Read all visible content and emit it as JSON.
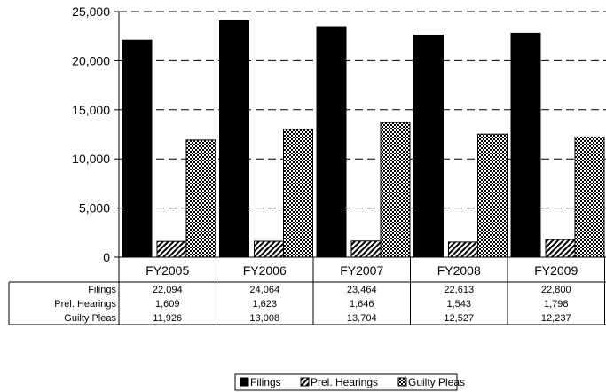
{
  "chart_data": {
    "type": "bar",
    "categories": [
      "FY2005",
      "FY2006",
      "FY2007",
      "FY2008",
      "FY2009"
    ],
    "series": [
      {
        "name": "Filings",
        "values": [
          22094,
          24064,
          23464,
          22613,
          22800
        ],
        "color": "#000000",
        "pattern": "solid"
      },
      {
        "name": "Prel. Hearings",
        "values": [
          1609,
          1623,
          1646,
          1543,
          1798
        ],
        "color": "#000000",
        "pattern": "diagonal-hatch"
      },
      {
        "name": "Guilty Pleas",
        "values": [
          11926,
          13008,
          13704,
          12527,
          12237
        ],
        "color": "#000000",
        "pattern": "crosshatch"
      }
    ],
    "ylim": [
      0,
      25000
    ],
    "yticks": [
      "0",
      "5,000",
      "10,000",
      "15,000",
      "20,000",
      "25,000"
    ],
    "grid": "dashed-horizontal",
    "legend_position": "bottom",
    "data_table": {
      "row_labels": [
        "Filings",
        "Prel. Hearings",
        "Guilty Pleas"
      ],
      "rows": [
        [
          "22,094",
          "24,064",
          "23,464",
          "22,613",
          "22,800"
        ],
        [
          "1,609",
          "1,623",
          "1,646",
          "1,543",
          "1,798"
        ],
        [
          "11,926",
          "13,008",
          "13,704",
          "12,527",
          "12,237"
        ]
      ]
    },
    "legend": [
      "Filings",
      "Prel. Hearings",
      "Guilty Pleas"
    ]
  }
}
